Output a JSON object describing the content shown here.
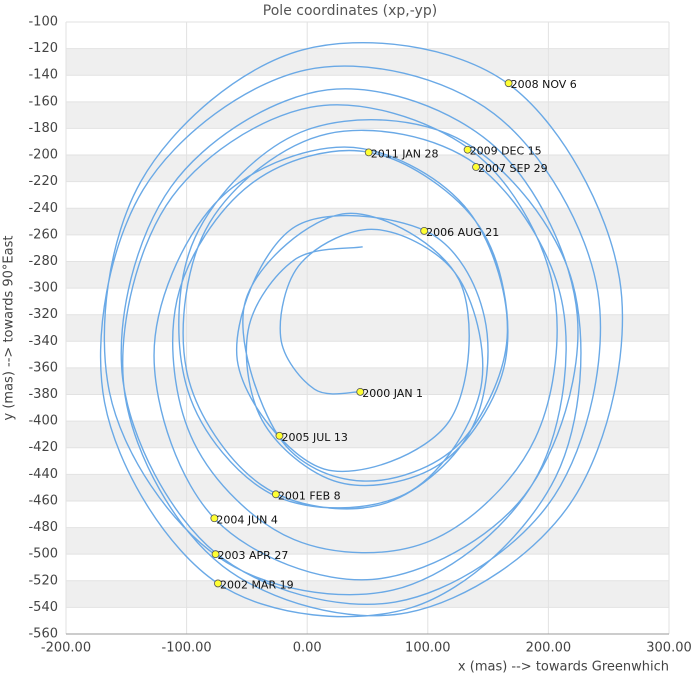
{
  "chart_data": {
    "type": "line",
    "title": "Pole coordinates (xp,-yp)",
    "x_label": "x (mas) --> towards Greenwhich",
    "y_label": "y (mas) --> towards 90°East",
    "xlim": [
      -200,
      300
    ],
    "ylim": [
      -560,
      -100
    ],
    "xticks": [
      {
        "value": -200,
        "label": "-200.00"
      },
      {
        "value": -100,
        "label": "-100.00"
      },
      {
        "value": 0,
        "label": "0.00"
      },
      {
        "value": 100,
        "label": "100.00"
      },
      {
        "value": 200,
        "label": "200.00"
      },
      {
        "value": 300,
        "label": "300.00"
      }
    ],
    "yticks": [
      -100,
      -120,
      -140,
      -160,
      -180,
      -200,
      -220,
      -240,
      -260,
      -280,
      -300,
      -320,
      -340,
      -360,
      -380,
      -400,
      -420,
      -440,
      -460,
      -480,
      -500,
      -520,
      -540,
      -560
    ],
    "grid": true,
    "series": [
      {
        "color": "#6aa9e6",
        "x": [
          44,
          6,
          -22,
          -5,
          58,
          126,
          143,
          81,
          -27,
          -99,
          -93,
          0,
          130,
          220,
          206,
          87,
          -74,
          -168,
          -136,
          -1,
          155,
          241,
          205,
          73,
          -76,
          -153,
          -113,
          17,
          156,
          224,
          180,
          54,
          -76,
          -127,
          -77,
          31,
          130,
          166,
          126,
          46,
          -24,
          -51,
          32,
          126,
          117,
          14,
          -58,
          -12,
          98,
          147,
          135,
          60,
          -38,
          -100,
          -81,
          17,
          140,
          212,
          187,
          71,
          -74,
          -164,
          -138,
          -4,
          166,
          259,
          221,
          83,
          -70,
          -151,
          -117,
          3,
          134,
          203,
          189,
          102,
          -11,
          -94,
          -108,
          -47,
          52,
          143,
          165,
          115,
          31,
          -35,
          -49,
          -11,
          46
        ],
        "values": [
          -378,
          -376,
          -337,
          -281,
          -256,
          -293,
          -379,
          -455,
          -456,
          -377,
          -262,
          -181,
          -190,
          -296,
          -442,
          -540,
          -522,
          -386,
          -226,
          -136,
          -169,
          -303,
          -456,
          -536,
          -499,
          -368,
          -224,
          -151,
          -194,
          -321,
          -456,
          -519,
          -474,
          -351,
          -237,
          -194,
          -238,
          -333,
          -417,
          -445,
          -411,
          -309,
          -244,
          -294,
          -401,
          -436,
          -354,
          -255,
          -257,
          -322,
          -408,
          -463,
          -448,
          -362,
          -251,
          -184,
          -207,
          -314,
          -447,
          -527,
          -502,
          -378,
          -220,
          -121,
          -146,
          -293,
          -458,
          -544,
          -509,
          -381,
          -238,
          -164,
          -195,
          -295,
          -413,
          -490,
          -489,
          -416,
          -309,
          -222,
          -198,
          -254,
          -351,
          -429,
          -447,
          -403,
          -332,
          -279,
          -269
        ]
      }
    ],
    "annotations": [
      {
        "x": 44,
        "y": -378,
        "label": "2000 JAN 1"
      },
      {
        "x": -26,
        "y": -455,
        "label": "2001 FEB 8"
      },
      {
        "x": -74,
        "y": -522,
        "label": "2002 MAR 19"
      },
      {
        "x": -76,
        "y": -500,
        "label": "2003 APR 27"
      },
      {
        "x": -77,
        "y": -473,
        "label": "2004 JUN 4"
      },
      {
        "x": -23,
        "y": -411,
        "label": "2005 JUL 13"
      },
      {
        "x": 97,
        "y": -257,
        "label": "2006 AUG 21"
      },
      {
        "x": 140,
        "y": -209,
        "label": "2007 SEP 29"
      },
      {
        "x": 167,
        "y": -146,
        "label": "2008 NOV 6"
      },
      {
        "x": 133,
        "y": -196,
        "label": "2009 DEC 15"
      },
      {
        "x": 51,
        "y": -198,
        "label": "2011 JAN 28"
      }
    ]
  }
}
